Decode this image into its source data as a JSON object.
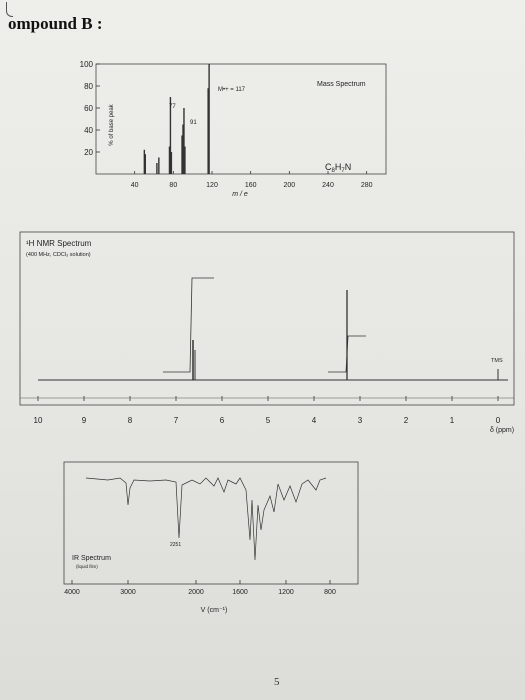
{
  "heading": "ompound B :",
  "mass_spectrum": {
    "title": "Mass Spectrum",
    "formula_c": "C",
    "formula_c_sub": "8",
    "formula_h": "H",
    "formula_h_sub": "7",
    "formula_n": "N",
    "ylabel": "% of base peak",
    "xlabel": "m / e",
    "molecular_ion": "M•+ = 117",
    "yticks": [
      "100",
      "80",
      "60",
      "40",
      "20"
    ],
    "xticks": [
      "40",
      "80",
      "120",
      "160",
      "200",
      "240",
      "280"
    ],
    "peak_labels": [
      "77",
      "91"
    ]
  },
  "nmr": {
    "title": "¹H NMR Spectrum",
    "subtitle": "(400 MHz, CDCl₃ solution)",
    "tms_label": "TMS",
    "xticks": [
      "10",
      "9",
      "8",
      "7",
      "6",
      "5",
      "4",
      "3",
      "2",
      "1",
      "0"
    ],
    "xlabel": "δ (ppm)"
  },
  "ir": {
    "title": "IR Spectrum",
    "subtitle": "(liquid film)",
    "peak_label": "2251",
    "xticks": [
      "4000",
      "3000",
      "2000",
      "1600",
      "1200",
      "800"
    ],
    "xlabel": "V (cm⁻¹)"
  },
  "page_number": "5",
  "chart_data": [
    {
      "type": "bar",
      "title": "Mass Spectrum",
      "xlabel": "m / e",
      "ylabel": "% of base peak",
      "xlim": [
        0,
        300
      ],
      "ylim": [
        0,
        100
      ],
      "x": [
        50,
        51,
        63,
        65,
        76,
        77,
        78,
        89,
        90,
        91,
        92,
        116,
        117
      ],
      "values": [
        22,
        18,
        10,
        15,
        25,
        70,
        20,
        35,
        45,
        60,
        25,
        78,
        100
      ]
    },
    {
      "type": "line",
      "title": "¹H NMR Spectrum",
      "xlabel": "δ (ppm)",
      "xlim": [
        10,
        0
      ],
      "x": [
        7.3,
        3.7,
        0.0
      ],
      "y": [
        1,
        1,
        0.3
      ]
    },
    {
      "type": "line",
      "title": "IR Spectrum",
      "xlabel": "V (cm⁻¹)",
      "xlim": [
        4000,
        600
      ],
      "x": [
        4000,
        3100,
        3060,
        3030,
        2930,
        2251,
        1600,
        1500,
        1450,
        1420,
        1100,
        1030,
        930,
        740,
        700,
        600
      ],
      "y": [
        95,
        90,
        60,
        70,
        88,
        40,
        75,
        20,
        12,
        35,
        85,
        80,
        70,
        60,
        45,
        90
      ]
    }
  ]
}
